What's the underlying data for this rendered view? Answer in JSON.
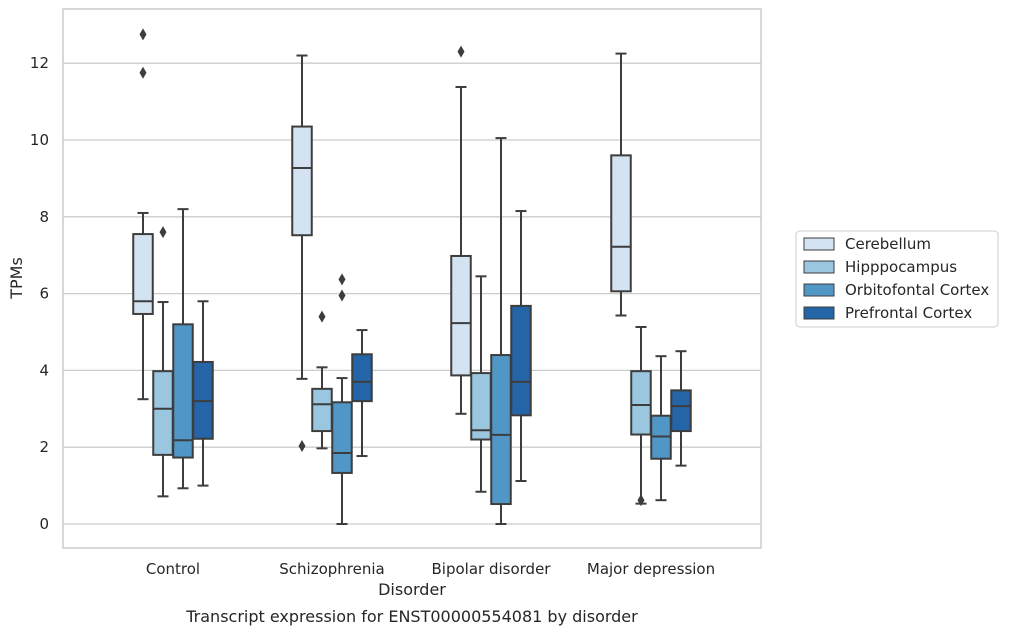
{
  "chart_data": {
    "type": "box",
    "xlabel": "Disorder",
    "ylabel": "TPMs",
    "caption": "Transcript expression for ENST00000554081 by disorder",
    "categories": [
      "Control",
      "Schizophrenia",
      "Bipolar disorder",
      "Major depression"
    ],
    "ylim": [
      -0.6,
      13.4
    ],
    "yticks": [
      0,
      2,
      4,
      6,
      8,
      10,
      12
    ],
    "grid": "horizontal",
    "legend_position": "right",
    "series": [
      {
        "name": "Cerebellum",
        "color": "#d4e3f2",
        "boxes": [
          {
            "whisker_low": 3.25,
            "q1": 5.47,
            "median": 5.8,
            "q3": 7.55,
            "whisker_high": 8.1,
            "outliers": [
              11.75,
              12.75
            ]
          },
          {
            "whisker_low": 3.78,
            "q1": 7.52,
            "median": 9.27,
            "q3": 10.35,
            "whisker_high": 12.2,
            "outliers": [
              2.03
            ]
          },
          {
            "whisker_low": 2.87,
            "q1": 3.87,
            "median": 5.23,
            "q3": 6.98,
            "whisker_high": 11.38,
            "outliers": [
              12.3
            ]
          },
          {
            "whisker_low": 5.43,
            "q1": 6.06,
            "median": 7.22,
            "q3": 9.6,
            "whisker_high": 12.25,
            "outliers": []
          }
        ]
      },
      {
        "name": "Hipppocampus",
        "color": "#9ac6df",
        "boxes": [
          {
            "whisker_low": 0.72,
            "q1": 1.8,
            "median": 3.0,
            "q3": 3.98,
            "whisker_high": 5.78,
            "outliers": [
              7.6
            ]
          },
          {
            "whisker_low": 1.97,
            "q1": 2.42,
            "median": 3.12,
            "q3": 3.52,
            "whisker_high": 4.08,
            "outliers": [
              5.4
            ]
          },
          {
            "whisker_low": 0.84,
            "q1": 2.2,
            "median": 2.44,
            "q3": 3.93,
            "whisker_high": 6.45,
            "outliers": []
          },
          {
            "whisker_low": 0.53,
            "q1": 2.33,
            "median": 3.1,
            "q3": 3.98,
            "whisker_high": 5.13,
            "outliers": [
              0.62
            ]
          }
        ]
      },
      {
        "name": "Orbitofontal Cortex",
        "color": "#5096c7",
        "boxes": [
          {
            "whisker_low": 0.93,
            "q1": 1.73,
            "median": 2.18,
            "q3": 5.2,
            "whisker_high": 8.2,
            "outliers": []
          },
          {
            "whisker_low": 0.0,
            "q1": 1.33,
            "median": 1.85,
            "q3": 3.17,
            "whisker_high": 3.8,
            "outliers": [
              5.95,
              6.37
            ]
          },
          {
            "whisker_low": 0.0,
            "q1": 0.52,
            "median": 2.32,
            "q3": 4.4,
            "whisker_high": 10.05,
            "outliers": []
          },
          {
            "whisker_low": 0.62,
            "q1": 1.7,
            "median": 2.28,
            "q3": 2.82,
            "whisker_high": 4.37,
            "outliers": []
          }
        ]
      },
      {
        "name": "Prefrontal Cortex",
        "color": "#2465a8",
        "boxes": [
          {
            "whisker_low": 1.0,
            "q1": 2.22,
            "median": 3.2,
            "q3": 4.22,
            "whisker_high": 5.8,
            "outliers": []
          },
          {
            "whisker_low": 1.77,
            "q1": 3.2,
            "median": 3.7,
            "q3": 4.42,
            "whisker_high": 5.05,
            "outliers": []
          },
          {
            "whisker_low": 1.12,
            "q1": 2.83,
            "median": 3.7,
            "q3": 5.68,
            "whisker_high": 8.15,
            "outliers": []
          },
          {
            "whisker_low": 1.52,
            "q1": 2.42,
            "median": 3.07,
            "q3": 3.48,
            "whisker_high": 4.5,
            "outliers": []
          }
        ]
      }
    ]
  }
}
